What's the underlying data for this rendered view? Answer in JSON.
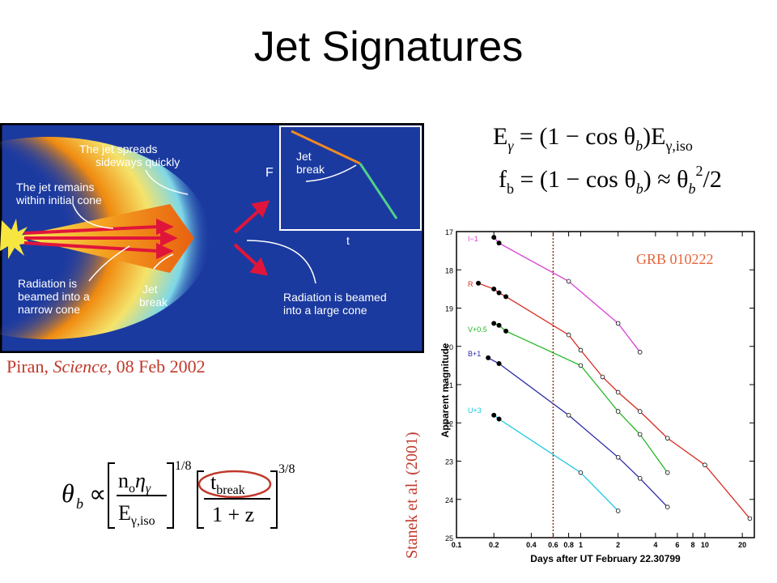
{
  "slide": {
    "title": "Jet Signatures"
  },
  "illustration": {
    "label_spreads": [
      "The jet spreads",
      "sideways quickly"
    ],
    "label_remains": [
      "The jet remains",
      "within initial cone"
    ],
    "label_radiation_narrow": [
      "Radiation is",
      "beamed into a",
      "narrow cone"
    ],
    "label_jet_break": [
      "Jet",
      "break"
    ],
    "label_radiation_large": [
      "Radiation is beamed",
      "into a large cone"
    ],
    "inset_F": "F",
    "inset_t": "t",
    "inset_jet_break": [
      "Jet",
      "break"
    ]
  },
  "credit": {
    "author": "Piran,",
    "journal": "Science,",
    "date": "08 Feb 2002"
  },
  "equations": {
    "eq1": {
      "lhs": "E",
      "lhs_sub": "γ",
      "rhs_a": "= (1 − cos θ",
      "b": "b",
      "rhs_b": ")E",
      "rhs_sub": "γ,iso"
    },
    "eq2": {
      "lhs": "f",
      "lhs_sub": "b",
      "rhs_a": "= (1 − cos θ",
      "b": "b",
      "rhs_b": ") ≈ θ",
      "sup": "2",
      "rhs_c": "/2"
    },
    "eq3": {
      "theta": "θ",
      "b": "b",
      "prop": "∝",
      "num": "n",
      "num_sub": "o",
      "eta": "η",
      "eta_sub": "γ",
      "den": "E",
      "den_sub": "γ,iso",
      "exp1": "1/8",
      "t": "t",
      "t_sub": "break",
      "onez": "1 + z",
      "exp2": "3/8"
    }
  },
  "graph": {
    "grb_label": "GRB 010222",
    "y_label": "Apparent magnitude",
    "x_label": "Days after UT February 22.30799",
    "y_ticks": [
      "17",
      "18",
      "19",
      "20",
      "21",
      "22",
      "23",
      "24",
      "25"
    ],
    "x_ticks": [
      "0.1",
      "0.2",
      "0.4",
      "0.6",
      "0.8",
      "1",
      "2",
      "4",
      "6",
      "8",
      "10",
      "20"
    ],
    "bands": [
      {
        "name": "I−1",
        "color": "#d63fd6"
      },
      {
        "name": "R",
        "color": "#d62b1f"
      },
      {
        "name": "V+0.5",
        "color": "#22b822"
      },
      {
        "name": "B+1",
        "color": "#2a2aa8"
      },
      {
        "name": "U+3",
        "color": "#18c8e0"
      }
    ]
  },
  "attribution": "Stanek et al. (2001)",
  "chart_data": {
    "type": "scatter",
    "title": "GRB 010222",
    "xlabel": "Days after UT February 22.30799",
    "ylabel": "Apparent magnitude",
    "xscale": "log",
    "xlim": [
      0.1,
      25
    ],
    "ylim": [
      25,
      17
    ],
    "jet_break_day": 0.6,
    "series": [
      {
        "name": "I−1",
        "x": [
          0.2,
          0.22,
          0.8,
          2,
          3
        ],
        "y": [
          17.15,
          17.3,
          18.3,
          19.4,
          20.15
        ]
      },
      {
        "name": "R",
        "x": [
          0.15,
          0.2,
          0.22,
          0.25,
          0.8,
          1,
          1.5,
          2,
          3,
          5,
          10,
          23
        ],
        "y": [
          18.35,
          18.5,
          18.6,
          18.7,
          19.7,
          20.1,
          20.8,
          21.2,
          21.7,
          22.4,
          23.1,
          24.5
        ]
      },
      {
        "name": "V+0.5",
        "x": [
          0.2,
          0.22,
          0.25,
          1,
          2,
          3,
          5
        ],
        "y": [
          19.4,
          19.45,
          19.6,
          20.5,
          21.7,
          22.3,
          23.3
        ]
      },
      {
        "name": "B+1",
        "x": [
          0.18,
          0.22,
          0.8,
          2,
          3,
          5
        ],
        "y": [
          20.3,
          20.45,
          21.8,
          22.9,
          23.45,
          24.2
        ]
      },
      {
        "name": "U+3",
        "x": [
          0.2,
          0.22,
          1,
          2
        ],
        "y": [
          21.8,
          21.9,
          23.3,
          24.3
        ]
      }
    ]
  }
}
